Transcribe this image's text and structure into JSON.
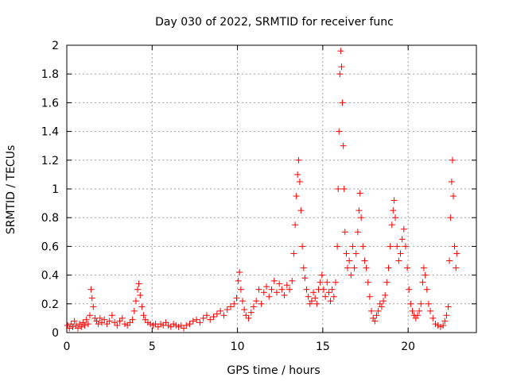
{
  "chart_data": {
    "type": "scatter",
    "title": "Day 030 of 2022, SRMTID for receiver func",
    "xlabel": "GPS time / hours",
    "ylabel": "SRMTID / TECUs",
    "xlim": [
      0,
      24
    ],
    "ylim": [
      0,
      2
    ],
    "x_ticks": [
      "0",
      "5",
      "10",
      "15",
      "20"
    ],
    "y_ticks": [
      "0",
      "0.2",
      "0.4",
      "0.6",
      "0.8",
      "1",
      "1.2",
      "1.4",
      "1.6",
      "1.8",
      "2"
    ],
    "grid": true,
    "marker": "+",
    "color": "#ff0000",
    "series": [
      {
        "name": "SRMTID",
        "points": [
          [
            0.05,
            0.05
          ],
          [
            0.15,
            0.03
          ],
          [
            0.25,
            0.06
          ],
          [
            0.35,
            0.04
          ],
          [
            0.45,
            0.08
          ],
          [
            0.55,
            0.05
          ],
          [
            0.65,
            0.03
          ],
          [
            0.75,
            0.06
          ],
          [
            0.85,
            0.04
          ],
          [
            0.95,
            0.07
          ],
          [
            1.05,
            0.05
          ],
          [
            1.15,
            0.09
          ],
          [
            1.25,
            0.06
          ],
          [
            1.35,
            0.12
          ],
          [
            1.42,
            0.3
          ],
          [
            1.48,
            0.24
          ],
          [
            1.55,
            0.18
          ],
          [
            1.65,
            0.1
          ],
          [
            1.75,
            0.08
          ],
          [
            1.85,
            0.06
          ],
          [
            1.95,
            0.1
          ],
          [
            2.05,
            0.07
          ],
          [
            2.2,
            0.09
          ],
          [
            2.35,
            0.06
          ],
          [
            2.5,
            0.08
          ],
          [
            2.65,
            0.12
          ],
          [
            2.8,
            0.07
          ],
          [
            2.95,
            0.05
          ],
          [
            3.1,
            0.08
          ],
          [
            3.25,
            0.1
          ],
          [
            3.4,
            0.06
          ],
          [
            3.55,
            0.05
          ],
          [
            3.7,
            0.07
          ],
          [
            3.85,
            0.09
          ],
          [
            3.95,
            0.15
          ],
          [
            4.05,
            0.22
          ],
          [
            4.15,
            0.3
          ],
          [
            4.22,
            0.34
          ],
          [
            4.3,
            0.26
          ],
          [
            4.4,
            0.18
          ],
          [
            4.5,
            0.12
          ],
          [
            4.6,
            0.09
          ],
          [
            4.75,
            0.07
          ],
          [
            4.9,
            0.06
          ],
          [
            5.05,
            0.05
          ],
          [
            5.2,
            0.06
          ],
          [
            5.35,
            0.04
          ],
          [
            5.5,
            0.06
          ],
          [
            5.65,
            0.05
          ],
          [
            5.8,
            0.07
          ],
          [
            5.95,
            0.05
          ],
          [
            6.1,
            0.04
          ],
          [
            6.25,
            0.06
          ],
          [
            6.4,
            0.05
          ],
          [
            6.55,
            0.04
          ],
          [
            6.7,
            0.05
          ],
          [
            6.85,
            0.03
          ],
          [
            7.0,
            0.05
          ],
          [
            7.2,
            0.06
          ],
          [
            7.4,
            0.08
          ],
          [
            7.6,
            0.09
          ],
          [
            7.8,
            0.07
          ],
          [
            8.0,
            0.1
          ],
          [
            8.2,
            0.12
          ],
          [
            8.4,
            0.09
          ],
          [
            8.6,
            0.11
          ],
          [
            8.8,
            0.13
          ],
          [
            9.0,
            0.15
          ],
          [
            9.2,
            0.12
          ],
          [
            9.4,
            0.16
          ],
          [
            9.6,
            0.18
          ],
          [
            9.8,
            0.2
          ],
          [
            9.95,
            0.24
          ],
          [
            10.05,
            0.36
          ],
          [
            10.12,
            0.42
          ],
          [
            10.2,
            0.3
          ],
          [
            10.3,
            0.22
          ],
          [
            10.4,
            0.16
          ],
          [
            10.5,
            0.12
          ],
          [
            10.65,
            0.1
          ],
          [
            10.8,
            0.14
          ],
          [
            10.95,
            0.18
          ],
          [
            11.1,
            0.22
          ],
          [
            11.25,
            0.3
          ],
          [
            11.4,
            0.2
          ],
          [
            11.55,
            0.28
          ],
          [
            11.7,
            0.32
          ],
          [
            11.85,
            0.25
          ],
          [
            12.0,
            0.3
          ],
          [
            12.15,
            0.36
          ],
          [
            12.3,
            0.28
          ],
          [
            12.45,
            0.34
          ],
          [
            12.6,
            0.3
          ],
          [
            12.75,
            0.26
          ],
          [
            12.9,
            0.33
          ],
          [
            13.05,
            0.3
          ],
          [
            13.2,
            0.36
          ],
          [
            13.3,
            0.55
          ],
          [
            13.38,
            0.75
          ],
          [
            13.45,
            0.95
          ],
          [
            13.52,
            1.1
          ],
          [
            13.58,
            1.2
          ],
          [
            13.65,
            1.05
          ],
          [
            13.72,
            0.85
          ],
          [
            13.8,
            0.6
          ],
          [
            13.88,
            0.45
          ],
          [
            13.95,
            0.38
          ],
          [
            14.05,
            0.3
          ],
          [
            14.15,
            0.25
          ],
          [
            14.25,
            0.2
          ],
          [
            14.35,
            0.22
          ],
          [
            14.45,
            0.28
          ],
          [
            14.55,
            0.24
          ],
          [
            14.65,
            0.2
          ],
          [
            14.75,
            0.3
          ],
          [
            14.85,
            0.35
          ],
          [
            14.95,
            0.4
          ],
          [
            15.05,
            0.3
          ],
          [
            15.15,
            0.25
          ],
          [
            15.25,
            0.35
          ],
          [
            15.35,
            0.28
          ],
          [
            15.45,
            0.22
          ],
          [
            15.55,
            0.3
          ],
          [
            15.65,
            0.25
          ],
          [
            15.75,
            0.35
          ],
          [
            15.85,
            0.6
          ],
          [
            15.9,
            1.0
          ],
          [
            15.95,
            1.4
          ],
          [
            16.0,
            1.8
          ],
          [
            16.05,
            1.96
          ],
          [
            16.1,
            1.85
          ],
          [
            16.15,
            1.6
          ],
          [
            16.2,
            1.3
          ],
          [
            16.25,
            1.0
          ],
          [
            16.3,
            0.7
          ],
          [
            16.38,
            0.55
          ],
          [
            16.45,
            0.45
          ],
          [
            16.55,
            0.5
          ],
          [
            16.65,
            0.4
          ],
          [
            16.75,
            0.6
          ],
          [
            16.85,
            0.45
          ],
          [
            16.95,
            0.55
          ],
          [
            17.05,
            0.7
          ],
          [
            17.12,
            0.85
          ],
          [
            17.18,
            0.97
          ],
          [
            17.25,
            0.8
          ],
          [
            17.35,
            0.6
          ],
          [
            17.45,
            0.5
          ],
          [
            17.55,
            0.45
          ],
          [
            17.65,
            0.35
          ],
          [
            17.75,
            0.25
          ],
          [
            17.85,
            0.15
          ],
          [
            17.95,
            0.1
          ],
          [
            18.05,
            0.08
          ],
          [
            18.15,
            0.12
          ],
          [
            18.25,
            0.15
          ],
          [
            18.35,
            0.2
          ],
          [
            18.45,
            0.18
          ],
          [
            18.55,
            0.22
          ],
          [
            18.65,
            0.26
          ],
          [
            18.75,
            0.35
          ],
          [
            18.85,
            0.45
          ],
          [
            18.95,
            0.6
          ],
          [
            19.05,
            0.75
          ],
          [
            19.12,
            0.85
          ],
          [
            19.18,
            0.92
          ],
          [
            19.25,
            0.8
          ],
          [
            19.35,
            0.6
          ],
          [
            19.45,
            0.5
          ],
          [
            19.55,
            0.55
          ],
          [
            19.65,
            0.65
          ],
          [
            19.75,
            0.72
          ],
          [
            19.85,
            0.6
          ],
          [
            19.95,
            0.45
          ],
          [
            20.05,
            0.3
          ],
          [
            20.15,
            0.2
          ],
          [
            20.25,
            0.15
          ],
          [
            20.35,
            0.12
          ],
          [
            20.45,
            0.1
          ],
          [
            20.55,
            0.12
          ],
          [
            20.65,
            0.15
          ],
          [
            20.75,
            0.2
          ],
          [
            20.85,
            0.35
          ],
          [
            20.92,
            0.45
          ],
          [
            21.0,
            0.4
          ],
          [
            21.1,
            0.3
          ],
          [
            21.2,
            0.2
          ],
          [
            21.3,
            0.15
          ],
          [
            21.45,
            0.1
          ],
          [
            21.6,
            0.06
          ],
          [
            21.75,
            0.05
          ],
          [
            21.9,
            0.04
          ],
          [
            22.05,
            0.05
          ],
          [
            22.15,
            0.08
          ],
          [
            22.25,
            0.12
          ],
          [
            22.35,
            0.18
          ],
          [
            22.42,
            0.5
          ],
          [
            22.48,
            0.8
          ],
          [
            22.55,
            1.05
          ],
          [
            22.6,
            1.2
          ],
          [
            22.65,
            0.95
          ],
          [
            22.72,
            0.6
          ],
          [
            22.8,
            0.45
          ],
          [
            22.85,
            0.55
          ]
        ]
      }
    ]
  }
}
